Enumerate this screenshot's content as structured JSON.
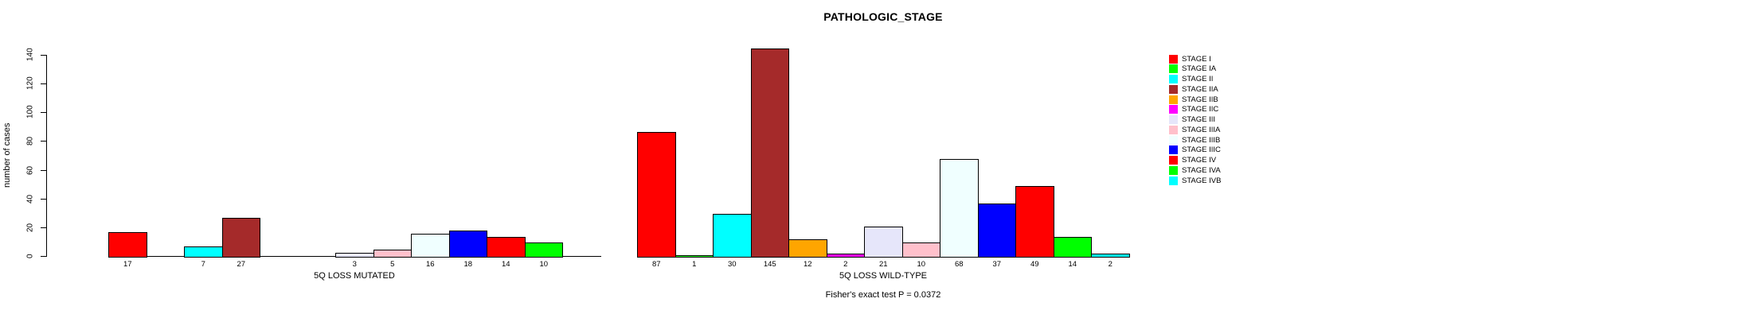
{
  "chart_data": {
    "type": "bar",
    "title": "PATHOLOGIC_STAGE",
    "ylabel": "number of cases",
    "ylim": [
      0,
      140
    ],
    "yticks": [
      0,
      20,
      40,
      60,
      80,
      100,
      120,
      140
    ],
    "grid": false,
    "legend_position": "right",
    "categories": [
      "STAGE I",
      "STAGE IA",
      "STAGE II",
      "STAGE IIA",
      "STAGE IIB",
      "STAGE IIC",
      "STAGE III",
      "STAGE IIIA",
      "STAGE IIIB",
      "STAGE IIIC",
      "STAGE IV",
      "STAGE IVA",
      "STAGE IVB"
    ],
    "colors": [
      "#FF0000",
      "#00FF00",
      "#00FFFF",
      "#A52A2A",
      "#FFA500",
      "#FF00FF",
      "#E6E6FA",
      "#FFC0CB",
      "#F0FFFF",
      "#0000FF",
      "#FF0000",
      "#00FF00",
      "#00FFFF"
    ],
    "groups": [
      {
        "label": "5Q LOSS MUTATED",
        "values": [
          17,
          0,
          7,
          27,
          0,
          0,
          3,
          5,
          16,
          18,
          14,
          10,
          0
        ]
      },
      {
        "label": "5Q LOSS WILD-TYPE",
        "values": [
          87,
          1,
          30,
          145,
          12,
          2,
          21,
          10,
          68,
          37,
          49,
          14,
          2
        ]
      }
    ],
    "footnote": "Fisher's exact test P = 0.0372"
  }
}
